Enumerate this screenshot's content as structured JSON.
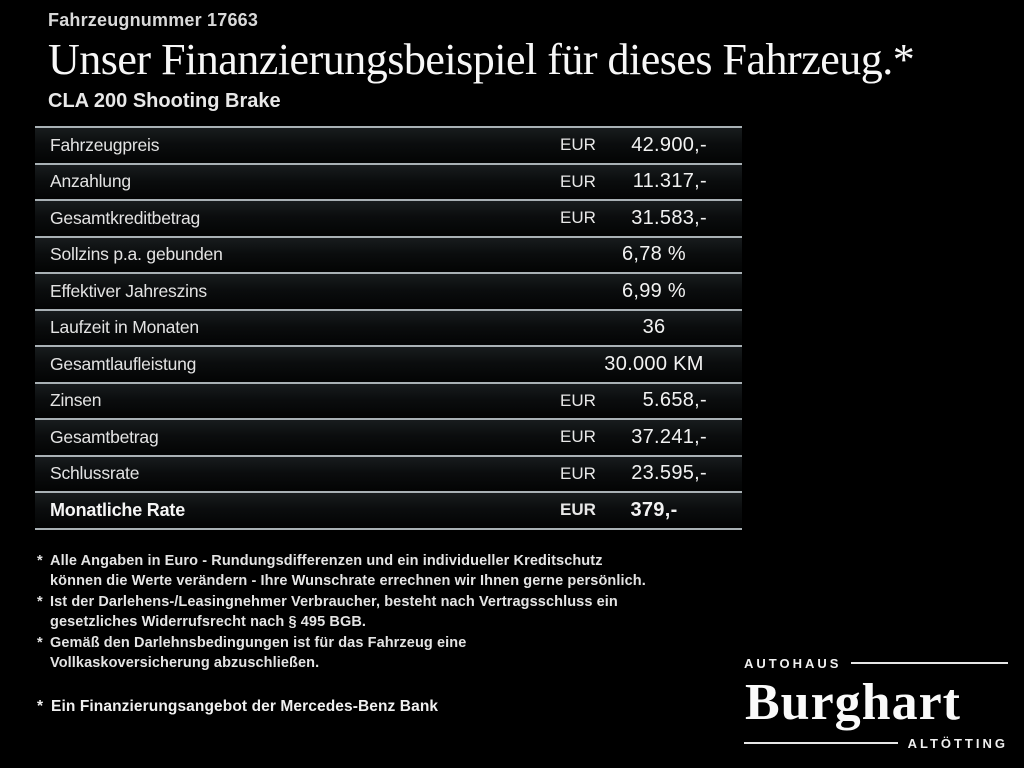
{
  "header": {
    "vehicle_number": "Fahrzeugnummer 17663",
    "title": "Unser Finanzierungsbeispiel für dieses Fahrzeug.*",
    "model": "CLA 200 Shooting Brake"
  },
  "table": {
    "rows": [
      {
        "label": "Fahrzeugpreis",
        "currency": "EUR",
        "value": "42.900,-"
      },
      {
        "label": "Anzahlung",
        "currency": "EUR",
        "value": "11.317,-"
      },
      {
        "label": "Gesamtkreditbetrag",
        "currency": "EUR",
        "value": "31.583,-"
      },
      {
        "label": "Sollzins p.a. gebunden",
        "value": "6,78 %"
      },
      {
        "label": "Effektiver Jahreszins",
        "value": "6,99 %"
      },
      {
        "label": "Laufzeit in Monaten",
        "value": "36"
      },
      {
        "label": "Gesamtlaufleistung",
        "value": "30.000 KM"
      },
      {
        "label": "Zinsen",
        "currency": "EUR",
        "value": "5.658,-"
      },
      {
        "label": "Gesamtbetrag",
        "currency": "EUR",
        "value": "37.241,-"
      },
      {
        "label": "Schlussrate",
        "currency": "EUR",
        "value": "23.595,-"
      },
      {
        "label": "Monatliche Rate",
        "currency": "EUR",
        "value": "379,-"
      }
    ]
  },
  "footnotes": [
    {
      "marker": "*",
      "lines": [
        "Alle Angaben in Euro - Rundungsdifferenzen und ein individueller Kreditschutz",
        "können die Werte verändern - Ihre Wunschrate errechnen wir Ihnen gerne persönlich."
      ]
    },
    {
      "marker": "*",
      "lines": [
        "Ist der Darlehens-/Leasingnehmer Verbraucher, besteht nach Vertragsschluss ein",
        "gesetzliches Widerrufsrecht nach § 495 BGB."
      ]
    },
    {
      "marker": "*",
      "lines": [
        "Gemäß den Darlehnsbedingungen ist für das Fahrzeug eine",
        "Vollkaskoversicherung abzuschließen."
      ]
    }
  ],
  "final_note": {
    "marker": "*",
    "text": "Ein Finanzierungsangebot der Mercedes-Benz Bank"
  },
  "logo": {
    "top_label": "Autohaus",
    "name": "Burghart",
    "bottom_label": "Altötting"
  },
  "colors": {
    "background": "#000000",
    "divider": "#a9b1b5",
    "text": "#ededed"
  }
}
